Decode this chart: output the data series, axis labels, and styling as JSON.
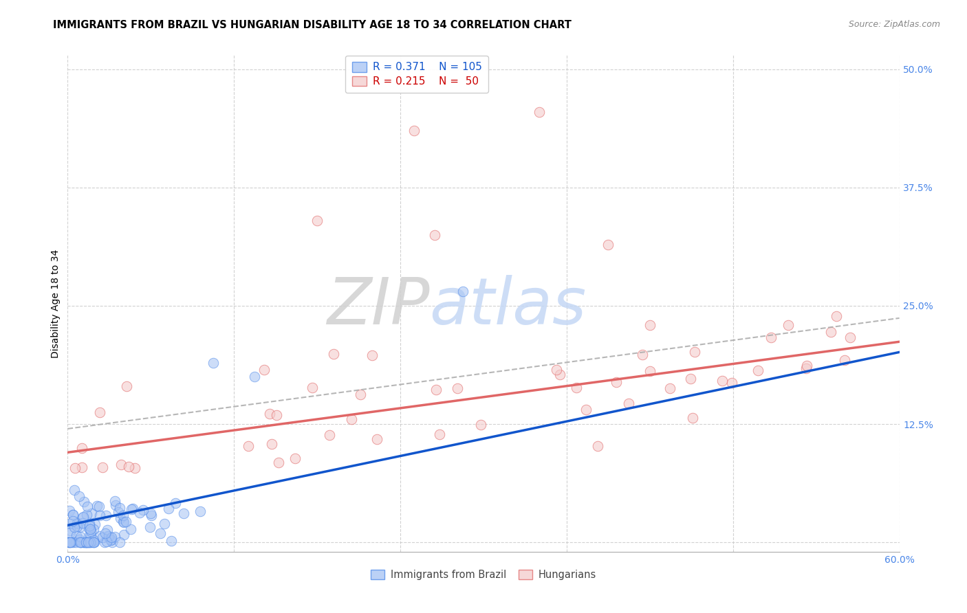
{
  "title": "IMMIGRANTS FROM BRAZIL VS HUNGARIAN DISABILITY AGE 18 TO 34 CORRELATION CHART",
  "source": "Source: ZipAtlas.com",
  "ylabel": "Disability Age 18 to 34",
  "xlim": [
    0.0,
    0.6
  ],
  "ylim": [
    -0.01,
    0.515
  ],
  "yticks": [
    0.0,
    0.125,
    0.25,
    0.375,
    0.5
  ],
  "ytick_labels": [
    "",
    "12.5%",
    "25.0%",
    "37.5%",
    "50.0%"
  ],
  "xtick_positions": [
    0.0,
    0.12,
    0.24,
    0.36,
    0.48,
    0.6
  ],
  "xtick_labels": [
    "0.0%",
    "",
    "",
    "",
    "",
    "60.0%"
  ],
  "blue_fill": "#a4c2f4",
  "blue_edge": "#4a86e8",
  "pink_fill": "#f4cccc",
  "pink_edge": "#e06666",
  "blue_line": "#1155cc",
  "pink_line": "#e06666",
  "dashed_color": "#aaaaaa",
  "grid_color": "#cccccc",
  "bg_color": "#ffffff",
  "axis_tick_color": "#4a86e8",
  "title_color": "#000000",
  "watermark_zip_color": "#d0d0d0",
  "watermark_atlas_color": "#c5d8f5",
  "legend_R1": "R = 0.371",
  "legend_N1": "N = 105",
  "legend_R2": "R = 0.215",
  "legend_N2": "N =  50",
  "blue_legend_color": "#1155cc",
  "pink_legend_color": "#cc0000"
}
